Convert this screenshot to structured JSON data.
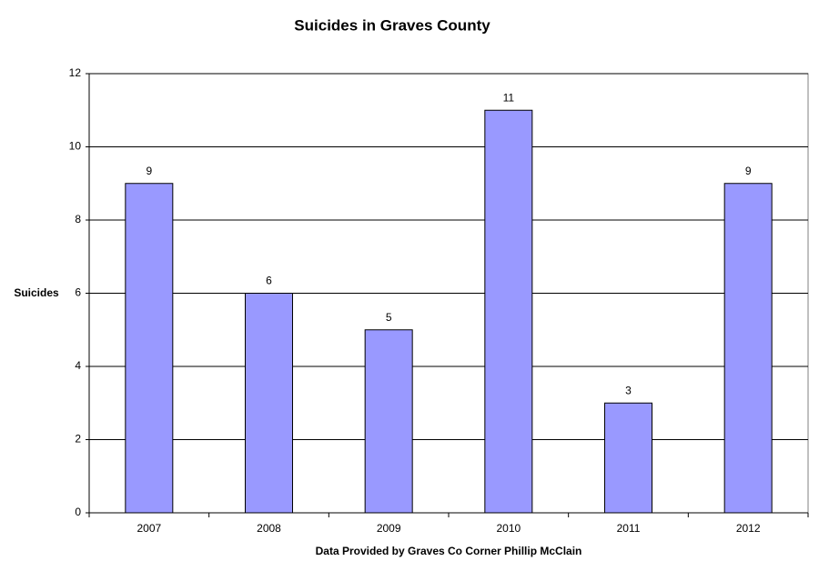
{
  "chart_data": {
    "type": "bar",
    "title": "Suicides in Graves County",
    "x_label": "Data Provided by Graves Co Corner Phillip McClain",
    "y_label": "Suicides",
    "categories": [
      "2007",
      "2008",
      "2009",
      "2010",
      "2011",
      "2012"
    ],
    "values": [
      9,
      6,
      5,
      11,
      3,
      9
    ],
    "color": "#9999ff",
    "ylim": [
      0,
      12
    ],
    "yticks": [
      0,
      2,
      4,
      6,
      8,
      10,
      12
    ],
    "grid": true
  }
}
